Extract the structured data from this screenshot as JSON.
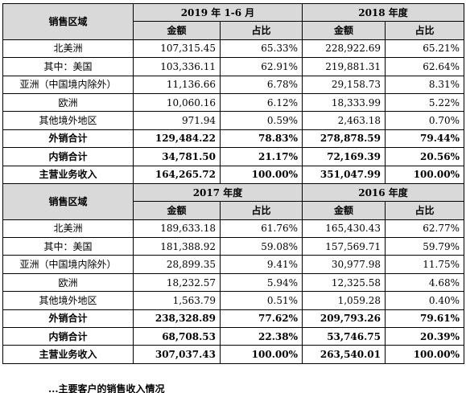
{
  "header_label": "销售区域",
  "amount_label": "金额",
  "share_label": "占比",
  "blocks": [
    {
      "periods": [
        "2019 年 1-6 月",
        "2018 年度"
      ],
      "rows": [
        {
          "region": "北美洲",
          "v": [
            "107,315.45",
            "65.33%",
            "228,922.69",
            "65.21%"
          ]
        },
        {
          "region": "其中：美国",
          "v": [
            "103,336.11",
            "62.91%",
            "219,881.31",
            "62.64%"
          ]
        },
        {
          "region": "亚洲（中国境内除外）",
          "v": [
            "11,136.66",
            "6.78%",
            "29,158.73",
            "8.31%"
          ]
        },
        {
          "region": "欧洲",
          "v": [
            "10,060.16",
            "6.12%",
            "18,333.99",
            "5.22%"
          ]
        },
        {
          "region": "其他境外地区",
          "v": [
            "971.94",
            "0.59%",
            "2,463.18",
            "0.70%"
          ]
        },
        {
          "region": "外销合计",
          "v": [
            "129,484.22",
            "78.83%",
            "278,878.59",
            "79.44%"
          ]
        },
        {
          "region": "内销合计",
          "v": [
            "34,781.50",
            "21.17%",
            "72,169.39",
            "20.56%"
          ]
        },
        {
          "region": "主营业务收入",
          "v": [
            "164,265.72",
            "100.00%",
            "351,047.99",
            "100.00%"
          ]
        }
      ]
    },
    {
      "periods": [
        "2017 年度",
        "2016 年度"
      ],
      "rows": [
        {
          "region": "北美洲",
          "v": [
            "189,633.18",
            "61.76%",
            "165,430.43",
            "62.77%"
          ]
        },
        {
          "region": "其中：美国",
          "v": [
            "181,388.92",
            "59.08%",
            "157,569.71",
            "59.79%"
          ]
        },
        {
          "region": "亚洲（中国境内除外）",
          "v": [
            "28,899.35",
            "9.41%",
            "30,977.98",
            "11.75%"
          ]
        },
        {
          "region": "欧洲",
          "v": [
            "18,232.57",
            "5.94%",
            "12,325.58",
            "4.68%"
          ]
        },
        {
          "region": "其他境外地区",
          "v": [
            "1,563.79",
            "0.51%",
            "1,059.28",
            "0.40%"
          ]
        },
        {
          "region": "外销合计",
          "v": [
            "238,328.89",
            "77.62%",
            "209,793.26",
            "79.61%"
          ]
        },
        {
          "region": "内销合计",
          "v": [
            "68,708.53",
            "22.38%",
            "53,746.75",
            "20.39%"
          ]
        },
        {
          "region": "主营业务收入",
          "v": [
            "307,037.43",
            "100.00%",
            "263,540.01",
            "100.00%"
          ]
        }
      ]
    }
  ],
  "footer_fragment": "...主要客户的销售收入情况"
}
